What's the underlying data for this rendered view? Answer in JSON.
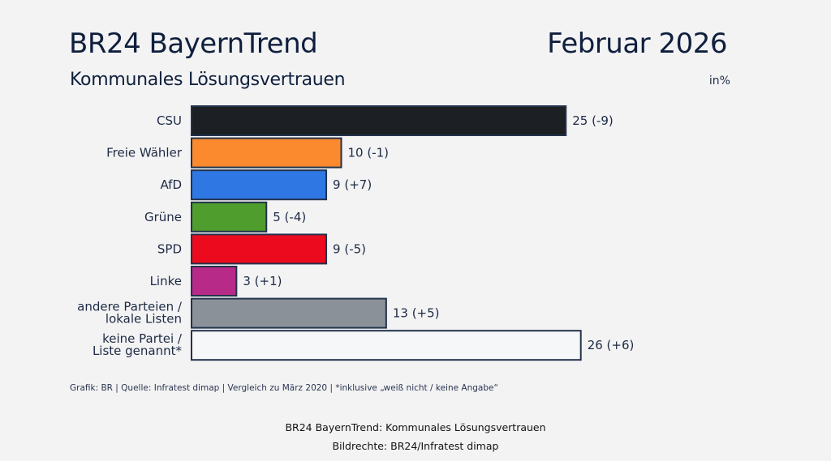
{
  "header": {
    "title": "BR24 BayernTrend",
    "subtitle": "Kommunales Lösungsvertrauen",
    "date": "Februar 2026",
    "unit": "in%"
  },
  "chart_data": {
    "type": "bar",
    "orientation": "horizontal",
    "title": "BR24 BayernTrend – Kommunales Lösungsvertrauen",
    "subtitle": "Februar 2026",
    "unit": "in%",
    "xlabel": "",
    "ylabel": "",
    "xlim": [
      0,
      26
    ],
    "grid": false,
    "legend": "none",
    "categories": [
      [
        "CSU"
      ],
      [
        "Freie Wähler"
      ],
      [
        "AfD"
      ],
      [
        "Grüne"
      ],
      [
        "SPD"
      ],
      [
        "Linke"
      ],
      [
        "andere Parteien /",
        "lokale Listen"
      ],
      [
        "keine Partei /",
        "Liste genannt*"
      ]
    ],
    "values": [
      25,
      10,
      9,
      5,
      9,
      3,
      13,
      26
    ],
    "changes": [
      "-9",
      "-1",
      "+7",
      "-4",
      "-5",
      "+1",
      "+5",
      "+6"
    ],
    "data_labels": [
      "25 (-9)",
      "10 (-1)",
      "9 (+7)",
      "5 (-4)",
      "9 (-5)",
      "3 (+1)",
      "13 (+5)",
      "26 (+6)"
    ],
    "colors": [
      "#1c1f24",
      "#fb8a2e",
      "#2f78e4",
      "#4e9d2d",
      "#ec0b1e",
      "#b82a87",
      "#8b9199",
      "#f6f7f8"
    ],
    "bar_outline": "#22324a"
  },
  "footer": {
    "source": "Grafik: BR | Quelle: Infratest dimap | Vergleich zu März 2020 | *inklusive „weiß nicht / keine Angabe“",
    "caption_line1": "BR24 BayernTrend: Kommunales Lösungsvertrauen",
    "caption_line2": "Bildrechte: BR24/Infratest dimap"
  }
}
